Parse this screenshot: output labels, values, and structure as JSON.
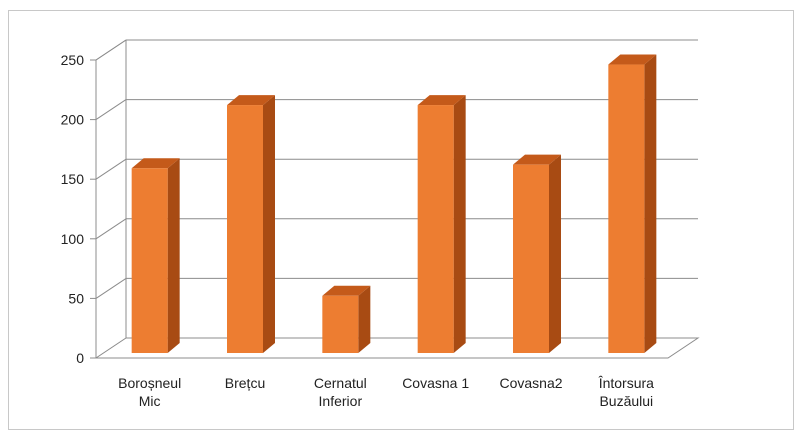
{
  "chart_data": {
    "type": "bar",
    "categories": [
      [
        "Boroșneul",
        "Mic"
      ],
      [
        "Brețcu"
      ],
      [
        "Cernatul",
        "Inferior"
      ],
      [
        "Covasna 1"
      ],
      [
        "Covasna2"
      ],
      [
        "Întorsura",
        "Buzăului"
      ]
    ],
    "values": [
      155,
      208,
      48,
      208,
      158,
      242
    ],
    "ylim": [
      0,
      250
    ],
    "yticks": [
      0,
      50,
      100,
      150,
      200,
      250
    ],
    "grid": true,
    "three_d": true,
    "colors": {
      "bar_front": "#ed7d31",
      "bar_side": "#a84b13",
      "bar_top": "#c45a1a",
      "grid": "#8c8c8c"
    }
  }
}
